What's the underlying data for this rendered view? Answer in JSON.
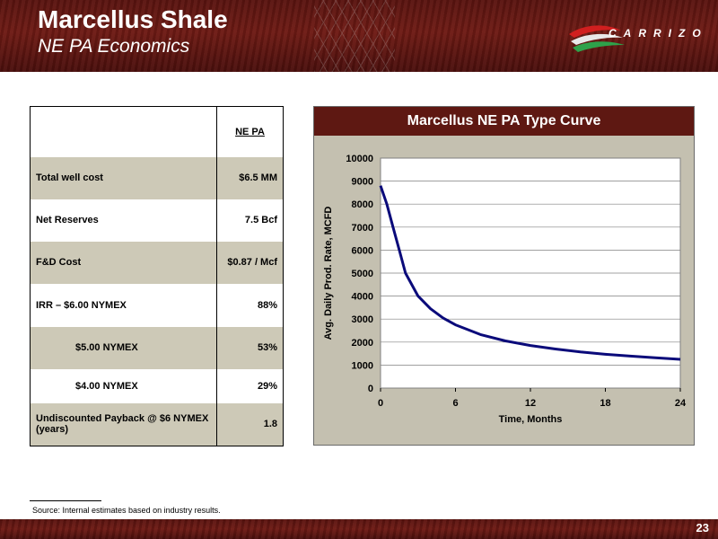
{
  "header": {
    "title": "Marcellus Shale",
    "subtitle": "NE PA Economics"
  },
  "logo": {
    "text": "CARRIZO",
    "colors": {
      "red": "#d11f1f",
      "green": "#2ea24a"
    }
  },
  "table": {
    "header_col": "NE PA",
    "rows": [
      {
        "label": "Total well cost",
        "value": "$6.5 MM"
      },
      {
        "label": "Net Reserves",
        "value": "7.5 Bcf"
      },
      {
        "label": "F&D Cost",
        "value": "$0.87 / Mcf"
      },
      {
        "label": "IRR – $6.00 NYMEX",
        "value": "88%"
      },
      {
        "label": "$5.00 NYMEX",
        "value": "53%"
      },
      {
        "label": "$4.00 NYMEX",
        "value": "29%"
      },
      {
        "label": "Undiscounted Payback @ $6 NYMEX (years)",
        "value": "1.8"
      }
    ]
  },
  "chart_data": {
    "type": "line",
    "title": "Marcellus NE PA Type Curve",
    "xlabel": "Time, Months",
    "ylabel": "Avg. Daily Prod. Rate, MCFD",
    "xlim": [
      0,
      24
    ],
    "ylim": [
      0,
      10000
    ],
    "xticks": [
      0,
      6,
      12,
      18,
      24
    ],
    "yticks": [
      0,
      1000,
      2000,
      3000,
      4000,
      5000,
      6000,
      7000,
      8000,
      9000,
      10000
    ],
    "grid": true,
    "series": [
      {
        "color": "#0a0a7a",
        "x": [
          0,
          0.5,
          1,
          1.5,
          2,
          3,
          4,
          5,
          6,
          8,
          10,
          12,
          14,
          16,
          18,
          20,
          22,
          24
        ],
        "y": [
          8800,
          8000,
          7000,
          6000,
          5000,
          4000,
          3450,
          3050,
          2750,
          2330,
          2050,
          1850,
          1700,
          1570,
          1470,
          1390,
          1320,
          1250
        ]
      }
    ]
  },
  "source": "Source: Internal estimates based on industry results.",
  "page_number": "23"
}
